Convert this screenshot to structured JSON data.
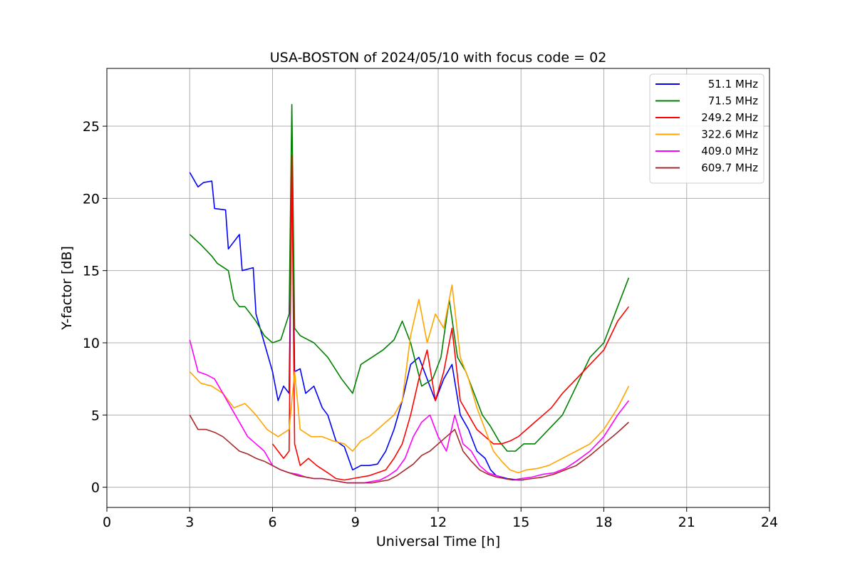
{
  "chart_data": {
    "type": "line",
    "title": "USA-BOSTON of 2024/05/10 with focus code = 02",
    "xlabel": "Universal Time [h]",
    "ylabel": "Y-factor [dB]",
    "xlim": [
      0,
      24
    ],
    "ylim": [
      -1.4,
      29.0
    ],
    "x_ticks": [
      "0",
      "3",
      "6",
      "9",
      "12",
      "15",
      "18",
      "21",
      "24"
    ],
    "y_ticks": [
      "0",
      "5",
      "10",
      "15",
      "20",
      "25"
    ],
    "grid": true,
    "legend_position": "top-right",
    "series": [
      {
        "name": "51.1 MHz",
        "color": "#0000ff",
        "x": [
          3.0,
          3.3,
          3.5,
          3.8,
          3.9,
          4.3,
          4.4,
          4.8,
          4.9,
          5.3,
          5.4,
          5.7,
          6.0,
          6.2,
          6.4,
          6.6,
          6.7,
          6.8,
          7.0,
          7.2,
          7.5,
          7.8,
          8.0,
          8.3,
          8.6,
          8.9,
          9.2,
          9.5,
          9.8,
          10.1,
          10.4,
          10.7,
          11.0,
          11.3,
          11.6,
          11.9,
          12.2,
          12.5,
          12.8,
          13.1,
          13.4,
          13.7,
          13.9,
          14.1,
          14.5,
          14.9,
          15.1
        ],
        "y": [
          21.8,
          20.8,
          21.1,
          21.2,
          19.3,
          19.2,
          16.5,
          17.5,
          15.0,
          15.2,
          12.0,
          10.0,
          8.0,
          6.0,
          7.0,
          6.5,
          22.0,
          8.0,
          8.2,
          6.5,
          7.0,
          5.5,
          5.0,
          3.2,
          2.8,
          1.2,
          1.5,
          1.5,
          1.6,
          2.5,
          4.0,
          6.0,
          8.5,
          9.0,
          7.5,
          6.0,
          7.5,
          8.5,
          5.0,
          4.0,
          2.5,
          2.0,
          1.2,
          0.8,
          0.6,
          0.5,
          0.5
        ]
      },
      {
        "name": "71.5 MHz",
        "color": "#008000",
        "x": [
          3.0,
          3.4,
          3.8,
          4.0,
          4.4,
          4.6,
          4.8,
          5.0,
          5.4,
          5.7,
          6.0,
          6.3,
          6.6,
          6.7,
          6.8,
          7.0,
          7.5,
          8.0,
          8.5,
          8.9,
          9.2,
          9.6,
          10.0,
          10.4,
          10.7,
          11.0,
          11.4,
          11.8,
          12.1,
          12.4,
          12.7,
          13.0,
          13.3,
          13.6,
          13.9,
          14.2,
          14.5,
          14.8,
          15.1,
          15.5,
          16.0,
          16.5,
          17.0,
          17.5,
          18.0,
          18.5,
          18.9
        ],
        "y": [
          17.5,
          16.8,
          16.0,
          15.5,
          15.0,
          13.0,
          12.5,
          12.5,
          11.5,
          10.5,
          10.0,
          10.2,
          12.0,
          26.5,
          11.0,
          10.5,
          10.0,
          9.0,
          7.5,
          6.5,
          8.5,
          9.0,
          9.5,
          10.2,
          11.5,
          10.0,
          7.0,
          7.5,
          9.0,
          13.0,
          9.0,
          8.0,
          6.5,
          5.0,
          4.2,
          3.2,
          2.5,
          2.5,
          3.0,
          3.0,
          4.0,
          5.0,
          7.0,
          9.0,
          10.0,
          12.5,
          14.5
        ]
      },
      {
        "name": "249.2 MHz",
        "color": "#ff0000",
        "x": [
          6.0,
          6.2,
          6.4,
          6.6,
          6.7,
          6.8,
          7.0,
          7.3,
          7.6,
          8.0,
          8.3,
          8.6,
          8.9,
          9.2,
          9.5,
          9.8,
          10.1,
          10.4,
          10.7,
          11.0,
          11.3,
          11.6,
          11.9,
          12.2,
          12.5,
          12.8,
          13.1,
          13.4,
          13.7,
          14.0,
          14.3,
          14.6,
          14.9,
          15.2,
          15.5,
          15.8,
          16.1,
          16.5,
          17.0,
          17.5,
          18.0,
          18.5,
          18.9
        ],
        "y": [
          3.0,
          2.5,
          2.0,
          2.5,
          23.0,
          3.0,
          1.5,
          2.0,
          1.5,
          1.0,
          0.6,
          0.5,
          0.6,
          0.7,
          0.8,
          1.0,
          1.2,
          2.0,
          3.0,
          5.0,
          7.5,
          9.5,
          6.0,
          8.0,
          11.0,
          6.0,
          5.0,
          4.0,
          3.5,
          3.0,
          3.0,
          3.2,
          3.5,
          4.0,
          4.5,
          5.0,
          5.5,
          6.5,
          7.5,
          8.5,
          9.5,
          11.5,
          12.5
        ]
      },
      {
        "name": "322.6 MHz",
        "color": "#ffa500",
        "x": [
          3.0,
          3.4,
          3.8,
          4.2,
          4.6,
          5.0,
          5.4,
          5.8,
          6.2,
          6.6,
          6.8,
          7.0,
          7.4,
          7.8,
          8.2,
          8.6,
          8.9,
          9.2,
          9.5,
          9.8,
          10.1,
          10.4,
          10.7,
          11.0,
          11.3,
          11.6,
          11.9,
          12.2,
          12.5,
          12.8,
          13.1,
          13.4,
          13.7,
          14.0,
          14.3,
          14.6,
          14.9,
          15.2,
          15.6,
          16.0,
          16.5,
          17.0,
          17.5,
          18.0,
          18.5,
          18.9
        ],
        "y": [
          8.0,
          7.2,
          7.0,
          6.5,
          5.5,
          5.8,
          5.0,
          4.0,
          3.5,
          4.0,
          8.0,
          4.0,
          3.5,
          3.5,
          3.2,
          3.0,
          2.5,
          3.2,
          3.5,
          4.0,
          4.5,
          5.0,
          6.0,
          10.5,
          13.0,
          10.0,
          12.0,
          11.0,
          14.0,
          9.0,
          7.5,
          5.5,
          4.0,
          2.5,
          1.8,
          1.2,
          1.0,
          1.2,
          1.3,
          1.5,
          2.0,
          2.5,
          3.0,
          4.0,
          5.5,
          7.0
        ]
      },
      {
        "name": "409.0 MHz",
        "color": "#ff00ff",
        "x": [
          3.0,
          3.3,
          3.6,
          3.9,
          4.2,
          4.5,
          4.8,
          5.1,
          5.4,
          5.7,
          6.0,
          6.3,
          6.6,
          6.9,
          7.2,
          7.5,
          7.8,
          8.1,
          8.4,
          8.7,
          9.0,
          9.3,
          9.6,
          9.9,
          10.2,
          10.5,
          10.8,
          11.1,
          11.4,
          11.7,
          12.0,
          12.3,
          12.6,
          12.9,
          13.2,
          13.5,
          13.8,
          14.1,
          14.4,
          14.7,
          15.0,
          15.4,
          15.8,
          16.2,
          16.6,
          17.0,
          17.5,
          18.0,
          18.5,
          18.9
        ],
        "y": [
          10.2,
          8.0,
          7.8,
          7.5,
          6.5,
          5.5,
          4.5,
          3.5,
          3.0,
          2.5,
          1.5,
          1.2,
          1.0,
          0.9,
          0.7,
          0.6,
          0.6,
          0.5,
          0.4,
          0.3,
          0.3,
          0.3,
          0.4,
          0.5,
          0.8,
          1.2,
          2.0,
          3.5,
          4.5,
          5.0,
          3.5,
          2.5,
          5.0,
          3.0,
          2.5,
          1.5,
          1.0,
          0.8,
          0.6,
          0.5,
          0.6,
          0.7,
          0.9,
          1.0,
          1.3,
          1.8,
          2.5,
          3.5,
          5.0,
          6.0
        ]
      },
      {
        "name": "609.7 MHz",
        "color": "#a52a2a",
        "x": [
          3.0,
          3.3,
          3.6,
          3.9,
          4.2,
          4.5,
          4.8,
          5.1,
          5.4,
          5.7,
          6.0,
          6.3,
          6.6,
          6.9,
          7.2,
          7.5,
          7.8,
          8.1,
          8.4,
          8.7,
          9.0,
          9.3,
          9.6,
          9.9,
          10.2,
          10.5,
          10.8,
          11.1,
          11.4,
          11.7,
          12.0,
          12.3,
          12.6,
          12.9,
          13.2,
          13.5,
          13.8,
          14.1,
          14.4,
          14.7,
          15.0,
          15.4,
          15.8,
          16.2,
          16.6,
          17.0,
          17.5,
          18.0,
          18.5,
          18.9
        ],
        "y": [
          5.0,
          4.0,
          4.0,
          3.8,
          3.5,
          3.0,
          2.5,
          2.3,
          2.0,
          1.8,
          1.5,
          1.2,
          1.0,
          0.8,
          0.7,
          0.6,
          0.6,
          0.5,
          0.4,
          0.3,
          0.3,
          0.3,
          0.3,
          0.4,
          0.5,
          0.8,
          1.2,
          1.6,
          2.2,
          2.5,
          3.0,
          3.5,
          4.0,
          2.5,
          1.8,
          1.2,
          0.9,
          0.7,
          0.6,
          0.5,
          0.5,
          0.6,
          0.7,
          0.9,
          1.2,
          1.5,
          2.2,
          3.0,
          3.8,
          4.5
        ]
      }
    ]
  }
}
